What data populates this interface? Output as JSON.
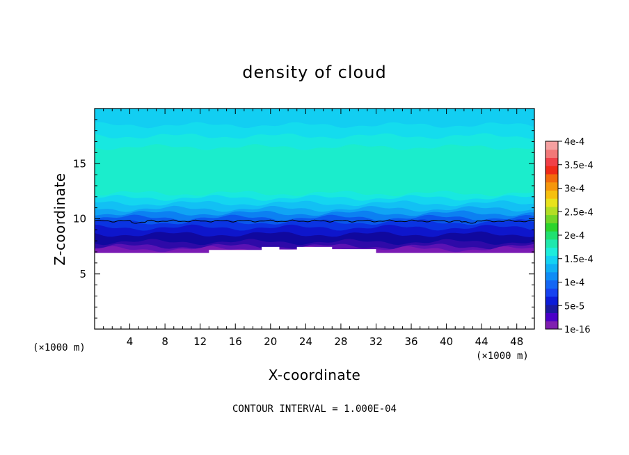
{
  "chart_data": {
    "type": "heatmap",
    "title": "density of cloud",
    "xlabel": "X-coordinate",
    "ylabel": "Z-coordinate",
    "x_unit_left": "(×1000 m)",
    "x_unit_right": "(×1000 m)",
    "xlim": [
      0,
      50
    ],
    "ylim": [
      0,
      20
    ],
    "x_ticks": [
      4,
      8,
      12,
      16,
      20,
      24,
      28,
      32,
      36,
      40,
      44,
      48
    ],
    "x_tick_labels": [
      "4",
      "8",
      "12",
      "16",
      "20",
      "24",
      "28",
      "32",
      "36",
      "40",
      "44",
      "48"
    ],
    "y_ticks": [
      5,
      10,
      15
    ],
    "y_tick_labels": [
      "5",
      "10",
      "15"
    ],
    "footnote": "CONTOUR INTERVAL = 1.000E-04",
    "colorbar": {
      "labels": [
        "1e-16",
        "5e-5",
        "1e-4",
        "1.5e-4",
        "2e-4",
        "2.5e-4",
        "3e-4",
        "3.5e-4",
        "4e-4"
      ],
      "colors": [
        "#7f1fb0",
        "#4a00c8",
        "#1a1aa0",
        "#0c1cd8",
        "#1642f0",
        "#1466f4",
        "#0e8cf6",
        "#0fb0f4",
        "#13d2f2",
        "#1deddc",
        "#1fe8ad",
        "#20e070",
        "#2cd42c",
        "#72d628",
        "#b2de24",
        "#e8e21c",
        "#f6c00e",
        "#f5960c",
        "#f26a0c",
        "#ef2a18",
        "#f04048",
        "#f27878",
        "#f5a0a0"
      ]
    },
    "layers": [
      {
        "z_top": 20.0,
        "color": "#12cef2"
      },
      {
        "z_top": 18.5,
        "color": "#14dcee"
      },
      {
        "z_top": 17.5,
        "color": "#18e8e0"
      },
      {
        "z_top": 16.5,
        "color": "#1bedcc"
      },
      {
        "z_top": 12.3,
        "color": "#18e8e0"
      },
      {
        "z_top": 11.9,
        "color": "#14d6f0"
      },
      {
        "z_top": 11.4,
        "color": "#12c0f4"
      },
      {
        "z_top": 10.9,
        "color": "#10a4f4"
      },
      {
        "z_top": 10.5,
        "color": "#0c80f2"
      },
      {
        "z_top": 10.1,
        "color": "#0a58ec"
      },
      {
        "z_top": 9.7,
        "color": "#0a34e2"
      },
      {
        "z_top": 9.2,
        "color": "#0e16cc"
      },
      {
        "z_top": 8.6,
        "color": "#10089e"
      },
      {
        "z_top": 7.9,
        "color": "#2e0aa8"
      },
      {
        "z_top": 7.5,
        "color": "#5a12b4"
      },
      {
        "z_top": 7.25,
        "color": "#7a1ab4"
      }
    ],
    "cloud_base": 6.9,
    "contour_line_z": 9.8
  }
}
